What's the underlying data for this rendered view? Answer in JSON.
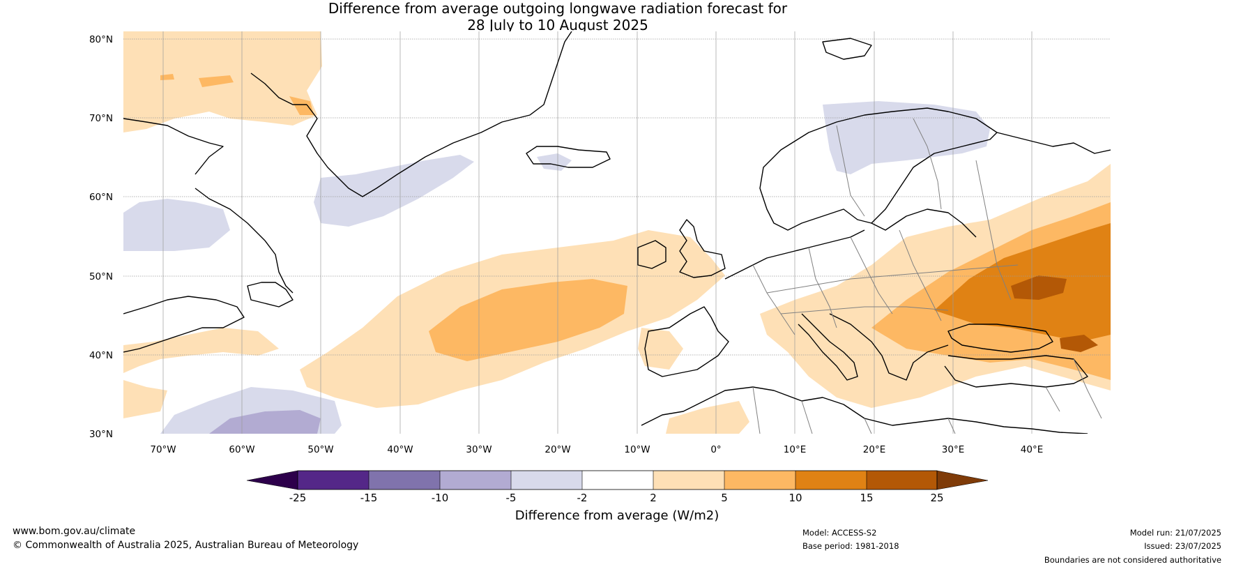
{
  "title_line1": "Difference from average outgoing longwave radiation forecast for",
  "title_line2": "28 July to 10 August 2025",
  "map": {
    "lat_labels": [
      "80°N",
      "70°N",
      "60°N",
      "50°N",
      "40°N",
      "30°N"
    ],
    "lon_labels": [
      "70°W",
      "60°W",
      "50°W",
      "40°W",
      "30°W",
      "20°W",
      "10°W",
      "0°",
      "10°E",
      "20°E",
      "30°E",
      "40°E"
    ],
    "extent": {
      "lon_min": -75,
      "lon_max": 50,
      "lat_min": 30,
      "lat_max": 81
    },
    "land_outline_color": "#000000",
    "border_color": "#808080",
    "gridline_color": "#999999"
  },
  "colorbar": {
    "label": "Difference from average (W/m2)",
    "ticks": [
      "-25",
      "-15",
      "-10",
      "-5",
      "-2",
      "2",
      "5",
      "10",
      "15",
      "25"
    ],
    "colors": [
      "#2d004b",
      "#542788",
      "#8073ac",
      "#b2abd2",
      "#d8daeb",
      "#ffffff",
      "#fee0b6",
      "#fdb863",
      "#e08214",
      "#b35806",
      "#7f3b08"
    ]
  },
  "footer": {
    "website": "www.bom.gov.au/climate",
    "copyright": "© Commonwealth of Australia 2025, Australian Bureau of Meteorology",
    "model": "Model: ACCESS-S2",
    "base_period": "Base period: 1981-2018",
    "model_run": "Model run: 21/07/2025",
    "issued": "Issued: 23/07/2025",
    "disclaimer": "Boundaries are not considered authoritative"
  }
}
